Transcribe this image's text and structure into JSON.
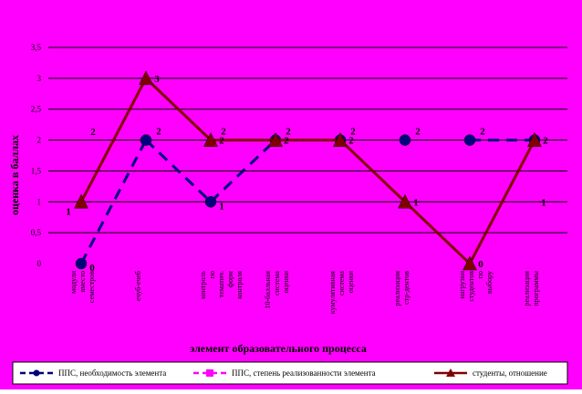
{
  "chart_data": {
    "type": "line",
    "title": "",
    "xlabel": "элемент образовательного процесса",
    "ylabel": "оценка в баллах",
    "ylim": [
      0,
      3.5
    ],
    "yticks": [
      0,
      0.5,
      1,
      1.5,
      2,
      2.5,
      3,
      3.5
    ],
    "ytick_labels": [
      "0",
      "0,5",
      "1",
      "1,5",
      "2",
      "2,5",
      "3",
      "3,5"
    ],
    "grid": true,
    "legend_position": "bottom",
    "background_color": "#ff00ff",
    "categories": [
      "модули вместо семестров",
      "ечуб-ечеб",
      "контроль по тематич. форм контроля",
      "10-балльная система оценки",
      "кумулятивная система оценки",
      "реализация стр-дентов",
      "нагрузки студентов по выбору",
      "реализация программы"
    ],
    "series": [
      {
        "name": "ППС, необходимость элемента",
        "color": "#000080",
        "line_style": "dashed",
        "marker": "circle",
        "values": [
          0,
          2,
          1,
          2,
          2,
          2,
          2,
          2
        ],
        "labels": [
          "0",
          "",
          "1",
          "",
          "",
          "",
          "",
          ""
        ],
        "show_line": [
          true,
          true,
          true,
          false,
          false,
          false,
          true
        ]
      },
      {
        "name": "ППС, степень реализованности элемента",
        "color": "#ff00ff",
        "line_style": "dashed",
        "marker": "square",
        "values": [
          2,
          2,
          2,
          2,
          2,
          2,
          2,
          1
        ],
        "labels": [
          "2",
          "2",
          "2",
          "2",
          "2",
          "2",
          "2",
          "1"
        ],
        "show_line": [
          false,
          false,
          false,
          false,
          false,
          false,
          false
        ]
      },
      {
        "name": "студенты, отношение",
        "color": "#800000",
        "line_style": "solid",
        "marker": "triangle",
        "values": [
          1,
          3,
          2,
          2,
          2,
          1,
          0,
          2
        ],
        "labels": [
          "1",
          "3",
          "2",
          "2",
          "2",
          "1",
          "0",
          "2"
        ],
        "show_line": [
          true,
          true,
          true,
          true,
          true,
          true,
          true
        ]
      }
    ]
  }
}
